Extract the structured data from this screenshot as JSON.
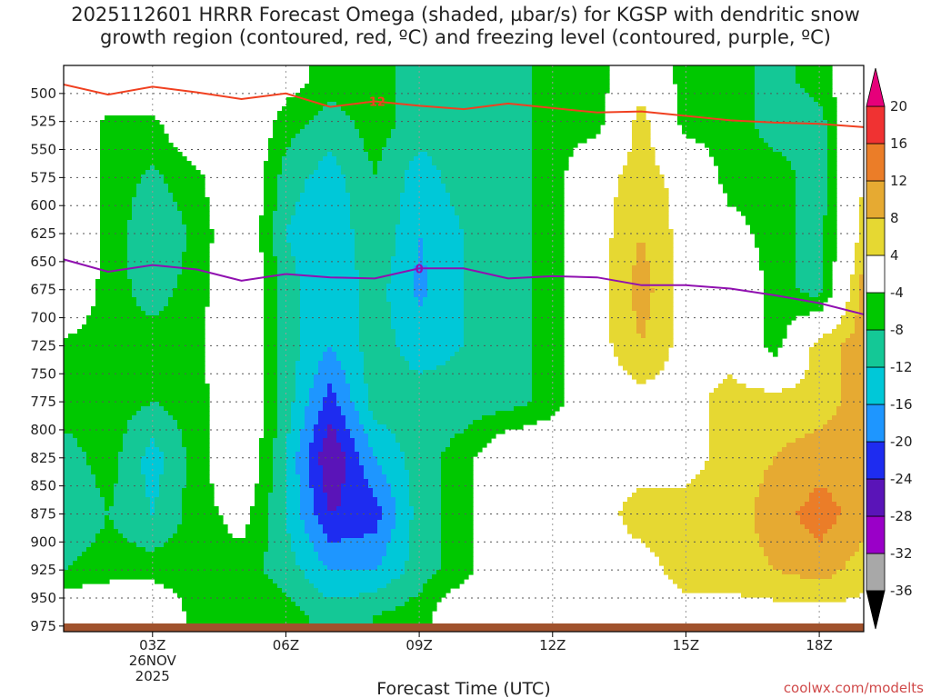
{
  "title_line1": "2025112601 HRRR Forecast Omega (shaded, µbar/s) for KGSP with dendritic snow",
  "title_line2": "growth region (contoured, red, ºC) and freezing level (contoured, purple, ºC)",
  "credit": "coolwx.com/modelts",
  "colors": {
    "red_contour": "#f04020",
    "purple_contour": "#9010b0",
    "ground": "#a0522d",
    "grid": "#555555"
  },
  "chart_data": {
    "type": "heatmap",
    "title": "2025112601 HRRR Forecast Omega (shaded, µbar/s) for KGSP with dendritic snow growth region (contoured, red, ºC) and freezing level (contoured, purple, ºC)",
    "xlabel": "Forecast Time (UTC)",
    "ylabel": "",
    "xlim": [
      0,
      18
    ],
    "ylim": [
      980,
      475
    ],
    "x_ticks": [
      {
        "hour": 2,
        "label": "03Z",
        "sub1": "26NOV",
        "sub2": "2025"
      },
      {
        "hour": 5,
        "label": "06Z"
      },
      {
        "hour": 8,
        "label": "09Z"
      },
      {
        "hour": 11,
        "label": "12Z"
      },
      {
        "hour": 14,
        "label": "15Z"
      },
      {
        "hour": 17,
        "label": "18Z"
      }
    ],
    "y_ticks": [
      500,
      525,
      550,
      575,
      600,
      625,
      650,
      675,
      700,
      725,
      750,
      775,
      800,
      825,
      850,
      875,
      900,
      925,
      950,
      975
    ],
    "colorbar": {
      "levels": [
        -36,
        -32,
        -28,
        -24,
        -20,
        -16,
        -12,
        -8,
        -4,
        4,
        8,
        12,
        16,
        20
      ],
      "colors": [
        "#000000",
        "#a8a8a8",
        "#9a00c8",
        "#5a14b8",
        "#1e2cf0",
        "#1e96ff",
        "#00c8d8",
        "#14c896",
        "#00c800",
        "#ffffff",
        "#e6d832",
        "#e6aa32",
        "#eb7d28",
        "#f03232",
        "#e6007a"
      ]
    },
    "omega_field": {
      "hours": [
        0,
        1,
        2,
        3,
        4,
        5,
        6,
        7,
        8,
        9,
        10,
        11,
        12,
        13,
        14,
        15,
        16,
        17,
        18
      ],
      "pressure": [
        490,
        525,
        575,
        625,
        675,
        725,
        775,
        825,
        875,
        925,
        965
      ],
      "values": [
        [
          2,
          2,
          2,
          2,
          2,
          -2,
          -6,
          -6,
          -10,
          -10,
          -10,
          -6,
          -6,
          2,
          -6,
          -6,
          -10,
          -6,
          2
        ],
        [
          2,
          -5,
          -5,
          2,
          2,
          -6,
          -10,
          -6,
          -10,
          -10,
          -10,
          -6,
          -6,
          6,
          -6,
          -6,
          -10,
          -10,
          4
        ],
        [
          2,
          -5,
          -9,
          -5,
          2,
          -10,
          -14,
          -8,
          -14,
          -10,
          -10,
          -6,
          2,
          6,
          2,
          -6,
          -6,
          -10,
          4
        ],
        [
          2,
          -5,
          -12,
          -7,
          2,
          -12,
          -16,
          -8,
          -16,
          -12,
          -10,
          -6,
          2,
          8,
          2,
          -2,
          -6,
          -10,
          6
        ],
        [
          2,
          -6,
          -10,
          -6,
          2,
          -10,
          -16,
          -10,
          -17,
          -12,
          -10,
          -6,
          2,
          10,
          2,
          2,
          -6,
          -10,
          10
        ],
        [
          -5,
          -6,
          -6,
          -5,
          2,
          -10,
          -16,
          -10,
          -14,
          -12,
          -10,
          -6,
          2,
          8,
          2,
          2,
          -6,
          6,
          10
        ],
        [
          -6,
          -6,
          -8,
          -6,
          2,
          -10,
          -22,
          -10,
          -10,
          -10,
          -10,
          -6,
          2,
          2,
          2,
          6,
          6,
          6,
          10
        ],
        [
          -10,
          -6,
          -14,
          -6,
          2,
          -12,
          -28,
          -16,
          -10,
          -6,
          2,
          2,
          2,
          2,
          2,
          6,
          8,
          10,
          10
        ],
        [
          -12,
          -8,
          -12,
          -6,
          -2,
          -12,
          -24,
          -22,
          -10,
          -6,
          2,
          2,
          2,
          6,
          6,
          6,
          10,
          14,
          10
        ],
        [
          -8,
          -6,
          -6,
          -6,
          -6,
          -10,
          -16,
          -16,
          -10,
          -6,
          2,
          2,
          2,
          2,
          6,
          6,
          8,
          10,
          6
        ],
        [
          2,
          2,
          2,
          -6,
          -6,
          -6,
          -10,
          -8,
          -6,
          2,
          2,
          2,
          2,
          2,
          2,
          2,
          2,
          2,
          2
        ]
      ]
    },
    "red_contour": {
      "label": "-12",
      "label_hour": 7,
      "x": [
        0,
        1,
        2,
        3,
        4,
        5,
        6,
        7,
        8,
        9,
        10,
        11,
        12,
        13,
        14,
        15,
        16,
        17,
        18
      ],
      "pressure": [
        492,
        501,
        494,
        499,
        505,
        500,
        512,
        507,
        511,
        514,
        509,
        513,
        517,
        516,
        520,
        524,
        526,
        527,
        530
      ]
    },
    "purple_contour": {
      "label": "0",
      "label_hour": 8,
      "x": [
        0,
        1,
        2,
        3,
        4,
        5,
        6,
        7,
        8,
        9,
        10,
        11,
        12,
        13,
        14,
        15,
        16,
        17,
        18
      ],
      "pressure": [
        648,
        659,
        653,
        657,
        667,
        661,
        664,
        665,
        656,
        656,
        665,
        663,
        664,
        671,
        671,
        674,
        680,
        687,
        697
      ]
    }
  }
}
